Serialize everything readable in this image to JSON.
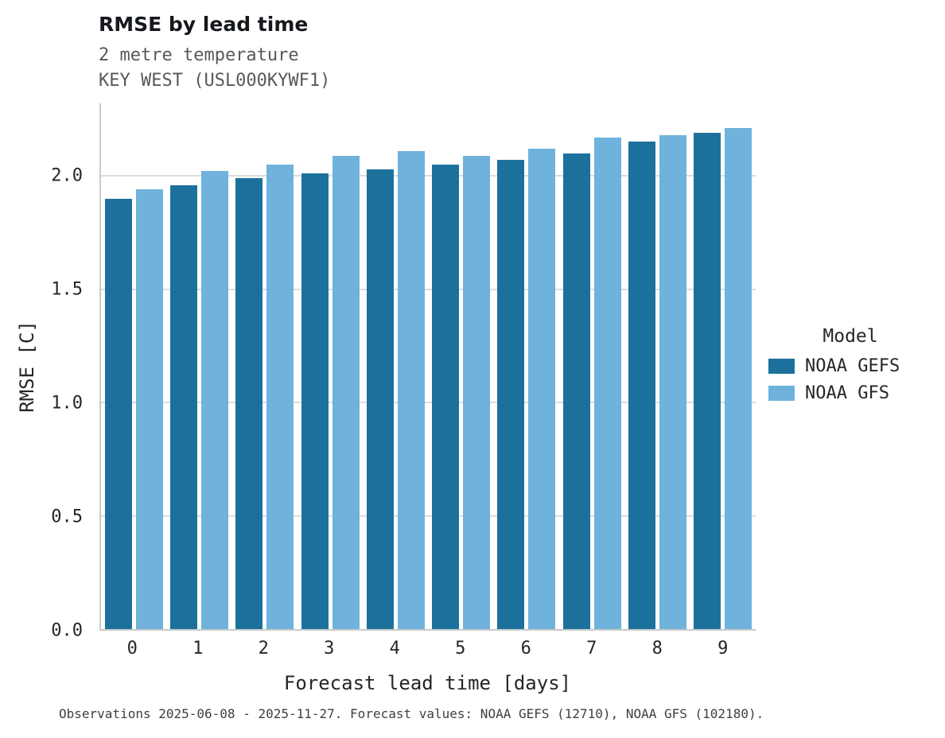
{
  "title": "RMSE by lead time",
  "subtitle_line1": "2 metre temperature",
  "subtitle_line2": "KEY WEST (USL000KYWF1)",
  "caption": "Observations 2025-06-08 - 2025-11-27. Forecast values: NOAA GEFS (12710), NOAA GFS (102180).",
  "colors": {
    "noaa_gefs": "#1c719c",
    "noaa_gfs": "#6fb2dc",
    "gridline": "#dcdcdc",
    "spine": "#c9c9c9"
  },
  "legend": {
    "title": "Model",
    "entries": [
      {
        "label": "NOAA GEFS",
        "color": "#1c719c"
      },
      {
        "label": "NOAA GFS",
        "color": "#6fb2dc"
      }
    ]
  },
  "chart_data": {
    "type": "bar",
    "title": "RMSE by lead time",
    "subtitle": [
      "2 metre temperature",
      "KEY WEST (USL000KYWF1)"
    ],
    "categories": [
      0,
      1,
      2,
      3,
      4,
      5,
      6,
      7,
      8,
      9
    ],
    "series": [
      {
        "name": "NOAA GEFS",
        "color": "#1c719c",
        "values": [
          1.9,
          1.96,
          1.99,
          2.01,
          2.03,
          2.05,
          2.07,
          2.1,
          2.15,
          2.19
        ]
      },
      {
        "name": "NOAA GFS",
        "color": "#6fb2dc",
        "values": [
          1.94,
          2.02,
          2.05,
          2.09,
          2.11,
          2.09,
          2.12,
          2.17,
          2.18,
          2.21
        ]
      }
    ],
    "xlabel": "Forecast lead time [days]",
    "ylabel": "RMSE [C]",
    "ylim": [
      0,
      2.32
    ],
    "yticks": [
      0.0,
      0.5,
      1.0,
      1.5,
      2.0
    ],
    "grid": true,
    "legend_title": "Model",
    "legend_position": "right"
  }
}
